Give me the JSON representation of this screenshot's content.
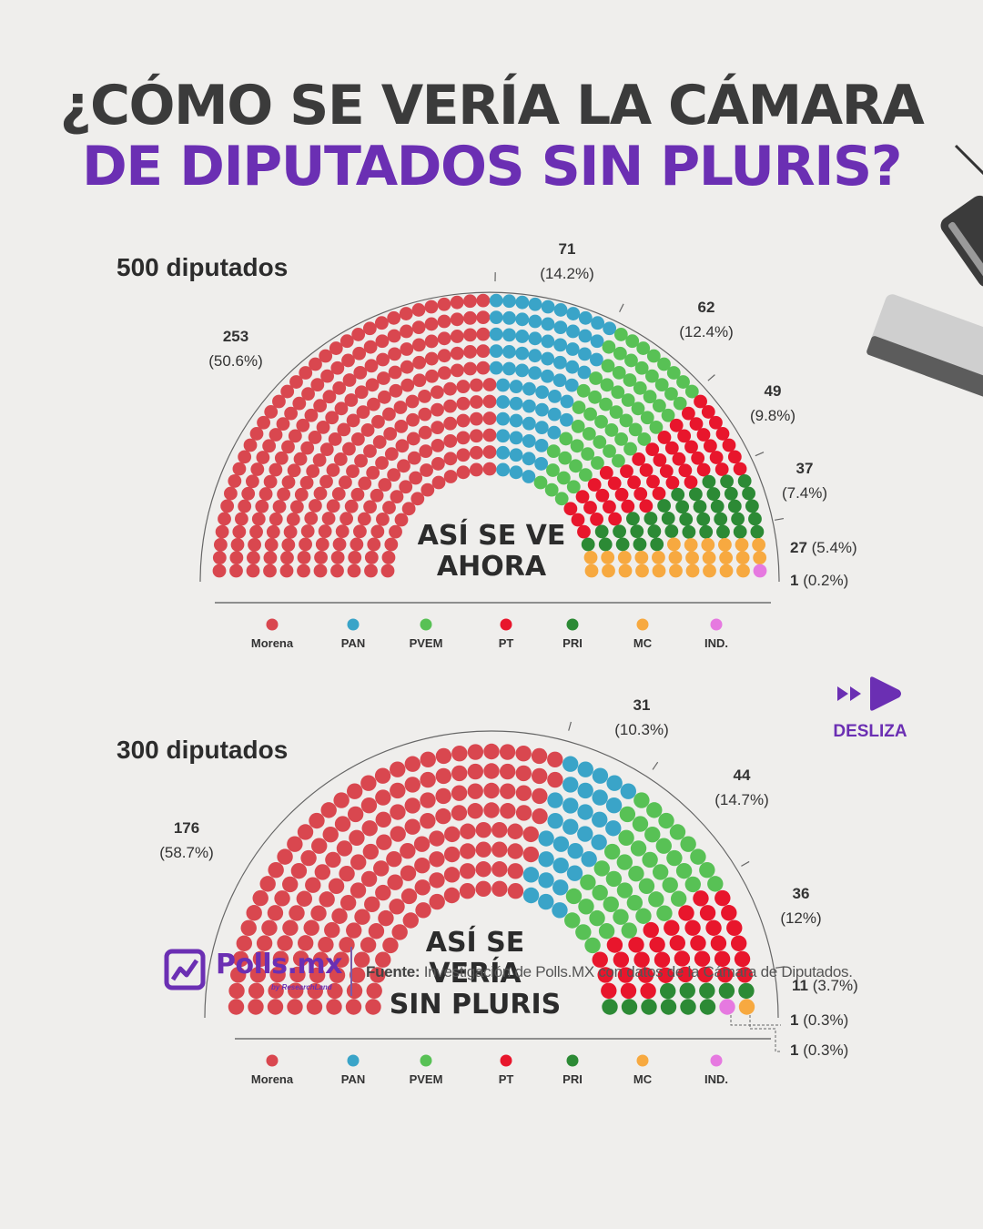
{
  "title": {
    "line1": "¿CÓMO SE VERÍA LA CÁMARA",
    "line2": "DE DIPUTADOS SIN PLURIS?"
  },
  "colors": {
    "Morena": "#d9474f",
    "PAN": "#3aa4c8",
    "PVEM": "#58c155",
    "PT": "#e8162c",
    "PRI": "#2c8a35",
    "MC": "#f7a940",
    "IND.": "#e679e0",
    "accent": "#6b2fb3"
  },
  "chart_data": [
    {
      "type": "parliament",
      "total_label": "500 diputados",
      "total": 500,
      "center_text": [
        "ASÍ SE VE",
        "AHORA"
      ],
      "parties": [
        {
          "name": "Morena",
          "seats": 253,
          "value_label": "253",
          "pct_label": "(50.6%)"
        },
        {
          "name": "PAN",
          "seats": 71,
          "value_label": "71",
          "pct_label": "(14.2%)"
        },
        {
          "name": "PVEM",
          "seats": 62,
          "value_label": "62",
          "pct_label": "(12.4%)"
        },
        {
          "name": "PT",
          "seats": 49,
          "value_label": "49",
          "pct_label": "(9.8%)"
        },
        {
          "name": "PRI",
          "seats": 37,
          "value_label": "37",
          "pct_label": "(7.4%)"
        },
        {
          "name": "MC",
          "seats": 27,
          "value_label": "27",
          "pct_label": "(5.4%)"
        },
        {
          "name": "IND.",
          "seats": 1,
          "value_label": "1",
          "pct_label": "(0.2%)"
        }
      ],
      "legend": [
        "Morena",
        "PAN",
        "PVEM",
        "PT",
        "PRI",
        "MC",
        "IND."
      ]
    },
    {
      "type": "parliament",
      "total_label": "300 diputados",
      "total": 300,
      "center_text": [
        "ASÍ SE",
        "VERÍA",
        "SIN PLURIS"
      ],
      "parties": [
        {
          "name": "Morena",
          "seats": 176,
          "value_label": "176",
          "pct_label": "(58.7%)"
        },
        {
          "name": "PAN",
          "seats": 31,
          "value_label": "31",
          "pct_label": "(10.3%)"
        },
        {
          "name": "PVEM",
          "seats": 44,
          "value_label": "44",
          "pct_label": "(14.7%)"
        },
        {
          "name": "PT",
          "seats": 36,
          "value_label": "36",
          "pct_label": "(12%)"
        },
        {
          "name": "PRI",
          "seats": 11,
          "value_label": "11",
          "pct_label": "(3.7%)"
        },
        {
          "name": "IND.",
          "seats": 1,
          "value_label": "1",
          "pct_label": "(0.3%)"
        },
        {
          "name": "MC",
          "seats": 1,
          "value_label": "1",
          "pct_label": "(0.3%)"
        }
      ],
      "legend": [
        "Morena",
        "PAN",
        "PVEM",
        "PT",
        "PRI",
        "MC",
        "IND."
      ]
    }
  ],
  "desliza": {
    "label": "DESLIZA",
    "icon": "fast-forward-play-icon"
  },
  "footer": {
    "logo_text": "Polls.mx",
    "logo_sub": "by ResearchLand",
    "source_label": "Fuente:",
    "source_text": "Investigación de Polls.MX con datos de la Cámara de Diputados."
  }
}
